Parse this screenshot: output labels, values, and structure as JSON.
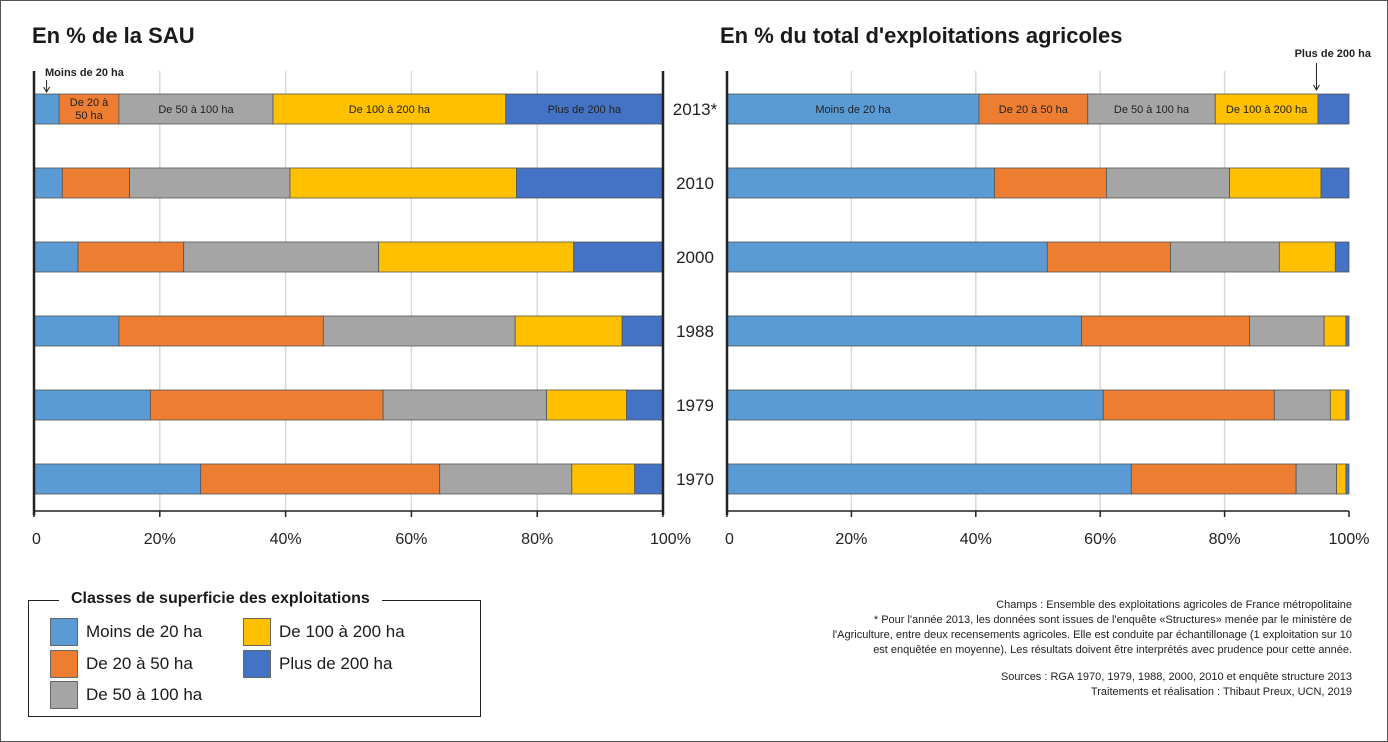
{
  "colors": {
    "lt20": "#5b9bd5",
    "20to50": "#ed7d31",
    "50to100": "#a5a5a5",
    "100to200": "#ffc000",
    "gt200": "#4472c4",
    "axis": "#222222",
    "grid": "#d9d9d9"
  },
  "chart_data": [
    {
      "type": "bar",
      "stacked": true,
      "orientation": "horizontal",
      "title": "En % de la SAU",
      "categories": [
        "2013*",
        "2010",
        "2000",
        "1988",
        "1979",
        "1970"
      ],
      "xlim": [
        0,
        100
      ],
      "x_ticks": [
        "0",
        "20%",
        "40%",
        "60%",
        "80%",
        "100%"
      ],
      "grid": true,
      "series": [
        {
          "name": "Moins de 20 ha",
          "values": [
            4,
            4.5,
            7,
            13.5,
            18.5,
            26.5
          ]
        },
        {
          "name": "De 20 à 50 ha",
          "values": [
            9.5,
            10.7,
            16.8,
            32.5,
            37,
            38
          ]
        },
        {
          "name": "De 50 à 100 ha",
          "values": [
            24.5,
            25.5,
            31,
            30.5,
            26,
            21
          ]
        },
        {
          "name": "De 100 à 200 ha",
          "values": [
            37,
            36,
            31,
            17,
            12.7,
            10
          ]
        },
        {
          "name": "Plus de 200 ha",
          "values": [
            25,
            23.3,
            14.2,
            6.5,
            5.8,
            4.5
          ]
        }
      ],
      "bar_labels": {
        "top_callout": "Moins de 20 ha",
        "segments": [
          "De 20 à 50 ha",
          "De 50 à 100 ha",
          "De 100 à 200 ha",
          "Plus de 200 ha"
        ]
      }
    },
    {
      "type": "bar",
      "stacked": true,
      "orientation": "horizontal",
      "title": "En % du total d'exploitations agricoles",
      "categories": [
        "2013*",
        "2010",
        "2000",
        "1988",
        "1979",
        "1970"
      ],
      "xlim": [
        0,
        100
      ],
      "x_ticks": [
        "0",
        "20%",
        "40%",
        "60%",
        "80%",
        "100%"
      ],
      "grid": true,
      "series": [
        {
          "name": "Moins de 20 ha",
          "values": [
            40.5,
            43,
            51.5,
            57,
            60.5,
            65
          ]
        },
        {
          "name": "De 20 à 50 ha",
          "values": [
            17.5,
            18,
            19.8,
            27,
            27.5,
            26.5
          ]
        },
        {
          "name": "De 50 à 100 ha",
          "values": [
            20.5,
            19.8,
            17.5,
            12,
            9,
            6.5
          ]
        },
        {
          "name": "De 100 à 200 ha",
          "values": [
            16.5,
            14.7,
            9,
            3.5,
            2.5,
            1.5
          ]
        },
        {
          "name": "Plus de 200 ha",
          "values": [
            5,
            4.5,
            2.2,
            0.5,
            0.5,
            0.5
          ]
        }
      ],
      "bar_labels": {
        "segments": [
          "Moins de 20 ha",
          "De 20 à 50 ha",
          "De 50 à 100 ha",
          "De 100 à 200 ha"
        ],
        "top_callout": "Plus de 200 ha"
      }
    }
  ],
  "legend": {
    "title": "Classes de superficie des exploitations",
    "items": [
      {
        "label": "Moins de 20 ha",
        "color_key": "lt20"
      },
      {
        "label": "De 20 à 50 ha",
        "color_key": "20to50"
      },
      {
        "label": "De 50 à 100 ha",
        "color_key": "50to100"
      },
      {
        "label": "De 100 à 200 ha",
        "color_key": "100to200"
      },
      {
        "label": "Plus de 200 ha",
        "color_key": "gt200"
      }
    ]
  },
  "notes": {
    "champs": "Champs : Ensemble des exploitations agricoles de France métropolitaine",
    "footnote_1": "* Pour l'année 2013, les données sont issues de l'enquête «Structures» menée par le ministère de",
    "footnote_2": "l'Agriculture, entre deux recensements agricoles. Elle est conduite par échantillonage (1 exploitation sur 10",
    "footnote_3": "est enquêtée en moyenne). Les résultats doivent être interprétés avec prudence pour cette année.",
    "sources": "Sources : RGA 1970, 1979, 1988, 2000, 2010 et enquête structure 2013",
    "credits": "Traitements et réalisation : Thibaut Preux, UCN, 2019"
  }
}
